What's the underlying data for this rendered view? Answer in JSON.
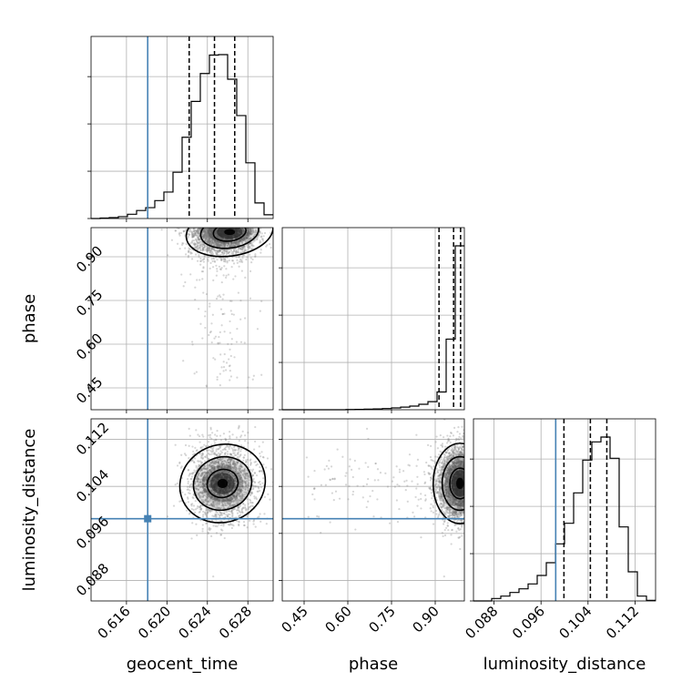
{
  "chart_data": {
    "type": "corner",
    "parameters": [
      {
        "name": "geocent_time",
        "range": [
          0.6125,
          0.6305
        ],
        "ticks": [
          "0.616",
          "0.620",
          "0.624",
          "0.628"
        ],
        "truth": 0.6181,
        "quantiles": [
          0.6222,
          0.6247,
          0.6267
        ]
      },
      {
        "name": "phase",
        "range": [
          0.375,
          1.0
        ],
        "ticks": [
          "0.45",
          "0.60",
          "0.75",
          "0.90"
        ],
        "truth": null,
        "quantiles": [
          0.913,
          0.963,
          0.987
        ]
      },
      {
        "name": "luminosity_distance",
        "range": [
          0.0845,
          0.1155
        ],
        "ticks": [
          "0.088",
          "0.096",
          "0.104",
          "0.112"
        ],
        "truth": 0.0985,
        "quantiles": [
          0.0999,
          0.1044,
          0.1072
        ]
      }
    ],
    "histograms": {
      "geocent_time": {
        "edges_start": 0.6125,
        "bin_width": 0.0009,
        "counts": [
          0,
          1,
          2,
          4,
          9,
          17,
          23,
          38,
          56,
          98,
          172,
          248,
          307,
          346,
          347,
          295,
          218,
          118,
          33,
          8
        ]
      },
      "phase": {
        "edges_start": 0.375,
        "bin_width": 0.03125,
        "counts": [
          0,
          0,
          0,
          0,
          0,
          0,
          0,
          1,
          2,
          3,
          4,
          6,
          9,
          13,
          18,
          27,
          40,
          88,
          350,
          812
        ]
      },
      "luminosity_distance": {
        "edges_start": 0.0845,
        "bin_width": 0.00155,
        "counts": [
          0,
          0,
          4,
          8,
          14,
          20,
          28,
          42,
          63,
          94,
          128,
          178,
          232,
          262,
          270,
          235,
          122,
          48,
          8,
          1
        ]
      }
    },
    "peaks": {
      "phase_vs_geocent_time": {
        "x": 0.6262,
        "y": 0.985
      },
      "luminosity_distance_vs_geocent_time": {
        "x": 0.6255,
        "y": 0.1045
      },
      "luminosity_distance_vs_phase": {
        "x": 0.985,
        "y": 0.1045
      }
    },
    "grid": true
  },
  "icons": {
    "truth_marker": "square-marker"
  },
  "colors": {
    "truth": "#4682b4",
    "hist": "#000000",
    "samples": "#8a8a8a",
    "grid": "#b0b0b0"
  }
}
